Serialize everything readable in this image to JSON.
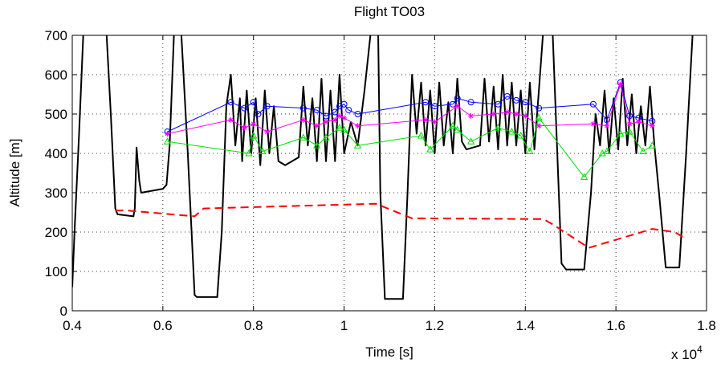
{
  "chart_data": {
    "type": "line",
    "title": "Flight TO03",
    "x_label": "Time [s]",
    "y_label": "Altitude [m]",
    "x_multiplier": "x 10",
    "x_multiplier_exponent": "4",
    "xlim": [
      4000,
      18000
    ],
    "xticks": [
      {
        "value": 4000,
        "label": "0.4"
      },
      {
        "value": 6000,
        "label": "0.6"
      },
      {
        "value": 8000,
        "label": "0.8"
      },
      {
        "value": 10000,
        "label": "1"
      },
      {
        "value": 12000,
        "label": "1.2"
      },
      {
        "value": 14000,
        "label": "1.4"
      },
      {
        "value": 16000,
        "label": "1.6"
      },
      {
        "value": 18000,
        "label": "1.8"
      }
    ],
    "ylim": [
      0,
      700
    ],
    "yticks": [
      0,
      100,
      200,
      300,
      400,
      500,
      600,
      700
    ],
    "grid": true,
    "series": [
      {
        "color": "#000000",
        "line_style": "solid",
        "line_width": 2,
        "marker": "none",
        "x": [
          4000,
          4050,
          4150,
          4250,
          4600,
          4750,
          4850,
          4950,
          5000,
          5350,
          5380,
          5420,
          5480,
          5520,
          6000,
          6080,
          6150,
          6250,
          6400,
          6550,
          6700,
          6750,
          7200,
          7300,
          7400,
          7500,
          7600,
          7700,
          7750,
          7850,
          7950,
          8050,
          8150,
          8250,
          8350,
          8450,
          8550,
          8700,
          9000,
          9100,
          9200,
          9300,
          9400,
          9500,
          9600,
          9700,
          9800,
          9900,
          10000,
          10150,
          10300,
          10450,
          10600,
          10750,
          10800,
          10900,
          11300,
          11400,
          11500,
          11600,
          11700,
          11800,
          11900,
          12000,
          12100,
          12200,
          12300,
          12400,
          12500,
          12600,
          12700,
          13000,
          13100,
          13200,
          13300,
          13400,
          13500,
          13600,
          13700,
          13800,
          13900,
          14000,
          14100,
          14200,
          14300,
          14400,
          14500,
          14600,
          14800,
          14900,
          15300,
          15450,
          15550,
          15650,
          15750,
          15850,
          15950,
          16050,
          16150,
          16250,
          16350,
          16450,
          16550,
          16650,
          16750,
          16850,
          16950,
          17100,
          17400,
          17550,
          17700
        ],
        "values": [
          60,
          200,
          450,
          720,
          720,
          720,
          500,
          260,
          245,
          240,
          260,
          415,
          330,
          300,
          310,
          320,
          420,
          720,
          720,
          400,
          40,
          35,
          35,
          200,
          520,
          600,
          420,
          540,
          380,
          560,
          400,
          540,
          370,
          560,
          400,
          520,
          380,
          370,
          390,
          570,
          420,
          540,
          380,
          590,
          380,
          560,
          380,
          600,
          400,
          480,
          420,
          560,
          720,
          720,
          300,
          30,
          30,
          300,
          600,
          450,
          580,
          420,
          560,
          400,
          580,
          420,
          530,
          400,
          590,
          430,
          410,
          420,
          590,
          430,
          570,
          410,
          600,
          420,
          580,
          420,
          560,
          400,
          580,
          410,
          560,
          720,
          720,
          720,
          120,
          105,
          105,
          300,
          500,
          420,
          560,
          400,
          540,
          410,
          590,
          420,
          550,
          400,
          520,
          420,
          570,
          420,
          300,
          110,
          110,
          400,
          720
        ]
      },
      {
        "color": "#ff0000",
        "line_style": "dashed",
        "line_width": 2,
        "marker": "none",
        "x": [
          4950,
          5200,
          6700,
          6900,
          10700,
          11500,
          14400,
          14600,
          15400,
          16800,
          17300,
          17560
        ],
        "values": [
          255,
          255,
          240,
          260,
          272,
          235,
          233,
          220,
          160,
          208,
          200,
          182
        ]
      },
      {
        "color": "#0000ff",
        "line_style": "solid",
        "line_width": 1,
        "marker": "circle",
        "x": [
          6100,
          7500,
          7800,
          8000,
          8100,
          8300,
          9100,
          9400,
          9600,
          9800,
          9900,
          10000,
          10100,
          10300,
          11800,
          12000,
          12400,
          12500,
          12800,
          13400,
          13600,
          13800,
          14000,
          14300,
          15500,
          15800,
          16100,
          16300,
          16500,
          16800
        ],
        "values": [
          455,
          530,
          515,
          530,
          500,
          520,
          515,
          510,
          495,
          505,
          520,
          525,
          510,
          500,
          530,
          520,
          525,
          540,
          530,
          525,
          545,
          535,
          530,
          515,
          525,
          485,
          580,
          495,
          490,
          482
        ]
      },
      {
        "color": "#ff00ff",
        "line_style": "solid",
        "line_width": 1,
        "marker": "star",
        "x": [
          6100,
          7500,
          7800,
          8000,
          8300,
          9100,
          9400,
          9600,
          9800,
          9900,
          10000,
          10300,
          11800,
          12000,
          12500,
          12800,
          13300,
          13600,
          13800,
          14000,
          14300,
          15500,
          15800,
          16100,
          16300,
          16500,
          16800
        ],
        "values": [
          450,
          485,
          465,
          475,
          455,
          485,
          470,
          480,
          485,
          495,
          490,
          470,
          485,
          480,
          520,
          495,
          500,
          505,
          500,
          495,
          470,
          475,
          470,
          575,
          475,
          480,
          470
        ]
      },
      {
        "color": "#00dd00",
        "line_style": "solid",
        "line_width": 1,
        "marker": "triangle",
        "x": [
          6100,
          7900,
          8000,
          8200,
          9100,
          9400,
          9600,
          9900,
          10000,
          10300,
          11700,
          11900,
          12400,
          12500,
          12800,
          13400,
          13700,
          13900,
          14100,
          14300,
          15300,
          15700,
          15800,
          16100,
          16300,
          16600,
          16800
        ],
        "values": [
          430,
          400,
          445,
          405,
          440,
          420,
          440,
          465,
          460,
          420,
          445,
          410,
          470,
          460,
          430,
          465,
          455,
          445,
          405,
          490,
          340,
          400,
          405,
          450,
          455,
          405,
          420
        ]
      }
    ]
  }
}
